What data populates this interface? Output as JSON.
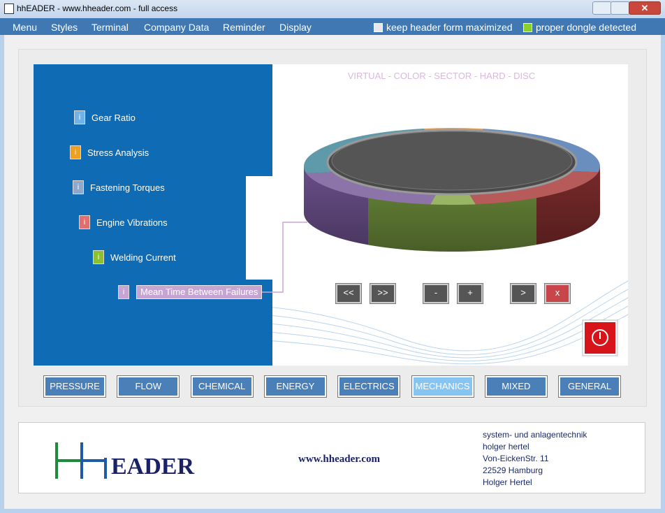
{
  "window": {
    "title": "hhEADER - www.hheader.com - full access"
  },
  "menu": [
    "Menu",
    "Styles",
    "Terminal",
    "Company Data",
    "Reminder",
    "Display"
  ],
  "options": [
    {
      "label": "keep header form maximized",
      "checked": false
    },
    {
      "label": "proper dongle detected",
      "checked": true
    }
  ],
  "sidebar": {
    "items": [
      {
        "icon": "i",
        "label": "Gear Ratio"
      },
      {
        "icon": "i",
        "label": "Stress Analysis"
      },
      {
        "icon": "i",
        "label": "Fastening Torques"
      },
      {
        "icon": "i",
        "label": "Engine Vibrations"
      },
      {
        "icon": "i",
        "label": "Welding Current"
      },
      {
        "icon": "i",
        "label": "Mean Time Between Failures"
      }
    ]
  },
  "disc": {
    "title": "VIRTUAL - COLOR - SECTOR - HARD - DISC",
    "buttons": [
      "<<",
      ">>",
      "-",
      "+",
      ">",
      "x"
    ]
  },
  "categories": [
    "PRESSURE",
    "FLOW",
    "CHEMICAL",
    "ENERGY",
    "ELECTRICS",
    "MECHANICS",
    "MIXED",
    "GENERAL"
  ],
  "footer": {
    "logo": "EADER",
    "url": "www.hheader.com",
    "address": [
      "system- und anlagentechnik",
      "holger hertel",
      "Von-EickenStr. 11",
      "22529 Hamburg",
      "Holger Hertel"
    ]
  }
}
